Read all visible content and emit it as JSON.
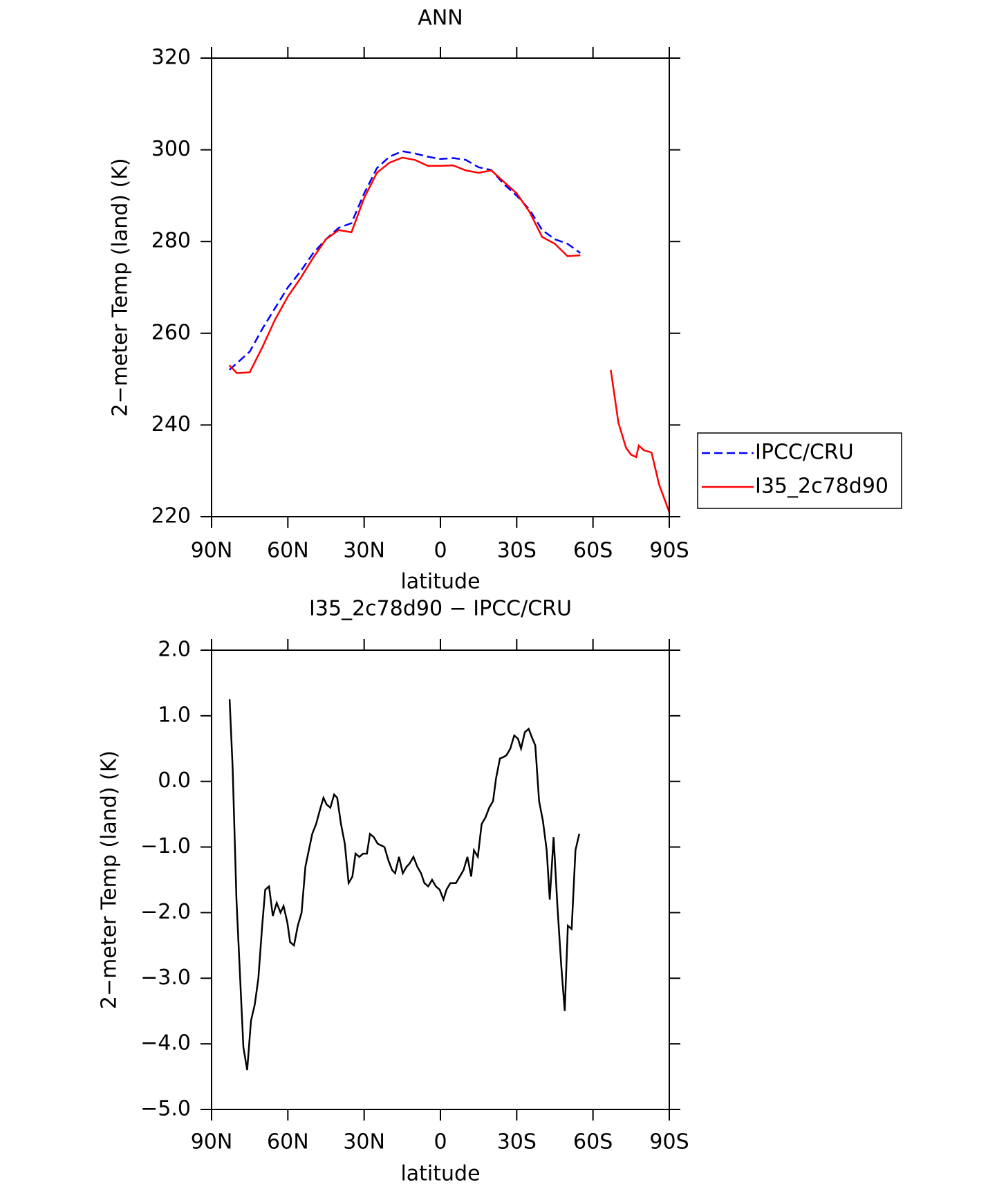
{
  "chart_data": [
    {
      "type": "line",
      "title": "ANN",
      "x_label": "latitude",
      "y_label": "2−meter Temp (land) (K)",
      "x": [
        83,
        80,
        75,
        70,
        65,
        60,
        55,
        50,
        45,
        40,
        35,
        30,
        25,
        20,
        15,
        10,
        5,
        0,
        -5,
        -10,
        -15,
        -20,
        -25,
        -30,
        -35,
        -40,
        -45,
        -50,
        -55,
        -60,
        -67,
        -70,
        -73,
        -75,
        -77,
        -78,
        -80,
        -83,
        -86,
        -90
      ],
      "series": [
        {
          "name": "IPCC/CRU",
          "color": "#0000ff",
          "dash": true,
          "values": [
            252,
            253.5,
            256,
            261,
            265.5,
            270,
            273.5,
            277.5,
            280.5,
            283,
            284,
            290.5,
            296,
            298.5,
            299.7,
            299.2,
            298.5,
            298,
            298.2,
            297.8,
            296.2,
            295.6,
            292.5,
            290,
            287,
            282.5,
            280.5,
            279.5,
            277.5,
            null,
            null,
            null,
            null,
            null,
            null,
            null,
            null,
            null,
            null,
            null
          ]
        },
        {
          "name": "I35_2c78d90",
          "color": "#ff0000",
          "dash": false,
          "values": [
            253,
            251.3,
            251.5,
            257,
            263,
            268,
            272,
            276.5,
            280.5,
            282.5,
            282,
            289.5,
            295,
            297.2,
            298.3,
            297.8,
            296.5,
            296.5,
            296.6,
            295.5,
            295,
            295.5,
            293,
            290.5,
            286.5,
            281,
            279.5,
            276.8,
            277,
            null,
            252,
            240.5,
            235,
            233.5,
            233,
            235.5,
            234.5,
            234,
            227,
            221
          ]
        }
      ],
      "xlim": [
        90,
        -90
      ],
      "xticks": [
        {
          "value": 90,
          "label": "90N"
        },
        {
          "value": 60,
          "label": "60N"
        },
        {
          "value": 30,
          "label": "30N"
        },
        0,
        {
          "value": -30,
          "label": "30S"
        },
        {
          "value": -60,
          "label": "60S"
        },
        {
          "value": -90,
          "label": "90S"
        }
      ],
      "ylim": [
        220,
        320
      ],
      "yticks": [
        220,
        240,
        260,
        280,
        300,
        320
      ],
      "legend": "right"
    },
    {
      "type": "line",
      "title": "I35_2c78d90 − IPCC/CRU",
      "x_label": "latitude",
      "y_label": "2−meter Temp (land) (K)",
      "x": [
        82.9,
        81.7,
        80.2,
        77.5,
        76.0,
        74.5,
        73.0,
        71.6,
        70.1,
        68.9,
        67.4,
        65.9,
        64.4,
        62.9,
        61.7,
        60.2,
        59.1,
        57.6,
        56.1,
        54.6,
        53.1,
        50.4,
        48.9,
        47.5,
        46.0,
        44.8,
        43.3,
        41.8,
        40.6,
        39.1,
        37.6,
        36.1,
        34.6,
        33.4,
        31.9,
        30.4,
        28.9,
        27.7,
        26.2,
        24.7,
        22.0,
        20.5,
        19.0,
        17.8,
        16.3,
        14.8,
        13.3,
        12.1,
        10.6,
        9.1,
        7.6,
        6.3,
        4.8,
        3.3,
        1.8,
        0.3,
        -1.2,
        -2.4,
        -3.9,
        -5.4,
        -6.1,
        -7.6,
        -9.1,
        -10.6,
        -12.1,
        -13.2,
        -14.7,
        -16.2,
        -17.7,
        -19.2,
        -20.7,
        -21.9,
        -23.4,
        -24.8,
        -26.0,
        -27.5,
        -29.0,
        -30.5,
        -31.7,
        -33.2,
        -34.7,
        -36.2,
        -37.3,
        -38.8,
        -40.3,
        -41.8,
        -43.0,
        -44.5,
        -46.0,
        -47.5,
        -48.9,
        -50.1,
        -51.6,
        -53.1,
        -54.6
      ],
      "values": [
        1.25,
        0.2,
        -1.8,
        -4.05,
        -4.4,
        -3.65,
        -3.4,
        -3.0,
        -2.2,
        -1.65,
        -1.6,
        -2.05,
        -1.85,
        -2.0,
        -1.9,
        -2.15,
        -2.45,
        -2.5,
        -2.2,
        -2.0,
        -1.3,
        -0.8,
        -0.65,
        -0.45,
        -0.25,
        -0.35,
        -0.4,
        -0.2,
        -0.25,
        -0.65,
        -0.95,
        -1.55,
        -1.45,
        -1.1,
        -1.15,
        -1.1,
        -1.1,
        -0.8,
        -0.85,
        -0.95,
        -1.0,
        -1.2,
        -1.35,
        -1.4,
        -1.15,
        -1.4,
        -1.3,
        -1.25,
        -1.15,
        -1.3,
        -1.4,
        -1.55,
        -1.6,
        -1.5,
        -1.6,
        -1.65,
        -1.8,
        -1.65,
        -1.55,
        -1.55,
        -1.55,
        -1.45,
        -1.35,
        -1.15,
        -1.45,
        -1.05,
        -1.15,
        -0.65,
        -0.55,
        -0.4,
        -0.3,
        0.05,
        0.35,
        0.37,
        0.4,
        0.5,
        0.7,
        0.65,
        0.5,
        0.75,
        0.8,
        0.65,
        0.55,
        -0.3,
        -0.6,
        -1.05,
        -1.8,
        -0.85,
        -1.9,
        -2.8,
        -3.5,
        -2.2,
        -2.25,
        -1.05,
        -0.8
      ],
      "color": "#000000",
      "xlim": [
        90,
        -90
      ],
      "xticks": [
        {
          "value": 90,
          "label": "90N"
        },
        {
          "value": 60,
          "label": "60N"
        },
        {
          "value": 30,
          "label": "30N"
        },
        0,
        {
          "value": -30,
          "label": "30S"
        },
        {
          "value": -60,
          "label": "60S"
        },
        {
          "value": -90,
          "label": "90S"
        }
      ],
      "ylim": [
        -5,
        2
      ],
      "yticks": [
        {
          "value": -5,
          "label": "−5.0"
        },
        {
          "value": -4,
          "label": "−4.0"
        },
        {
          "value": -3,
          "label": "−3.0"
        },
        {
          "value": -2,
          "label": "−2.0"
        },
        {
          "value": -1,
          "label": "−1.0"
        },
        {
          "value": 0,
          "label": "0.0"
        },
        {
          "value": 1,
          "label": "1.0"
        },
        {
          "value": 2,
          "label": "2.0"
        }
      ]
    }
  ]
}
